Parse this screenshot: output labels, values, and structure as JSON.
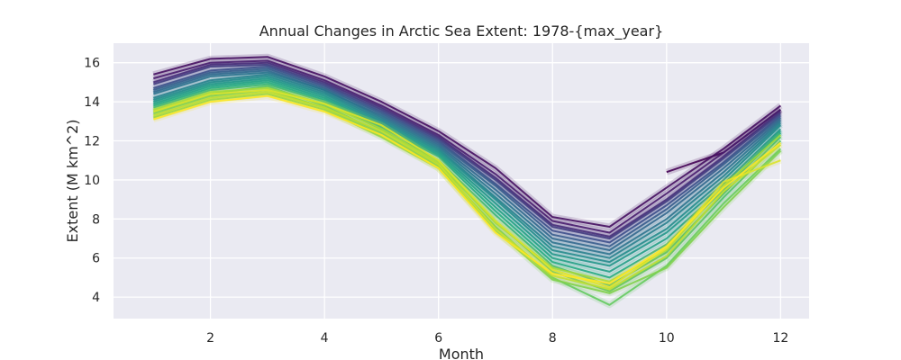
{
  "chart_data": {
    "type": "line",
    "title": "Annual Changes in Arctic Sea Extent: 1978-{max_year}",
    "xlabel": "Month",
    "ylabel": "Extent (M km^2)",
    "xlim": [
      0.3,
      12.5
    ],
    "ylim": [
      2.9,
      17.0
    ],
    "xticks": [
      2,
      4,
      6,
      8,
      10,
      12
    ],
    "yticks": [
      4,
      6,
      8,
      10,
      12,
      14,
      16
    ],
    "grid": true,
    "background": "#eaeaf2",
    "colormap": "viridis",
    "series": [
      {
        "x": [
          10,
          11,
          12
        ],
        "values": [
          10.4,
          11.4,
          13.6
        ]
      },
      {
        "x": [
          1,
          2,
          3,
          4,
          5,
          6,
          7,
          8,
          9,
          10,
          11,
          12
        ],
        "values": [
          15.4,
          16.2,
          16.3,
          15.3,
          14.0,
          12.5,
          10.6,
          8.1,
          7.6,
          9.6,
          11.6,
          13.8
        ]
      },
      {
        "x": [
          1,
          2,
          3,
          4,
          5,
          6,
          7,
          8,
          9,
          10,
          11,
          12
        ],
        "values": [
          15.2,
          16.0,
          16.1,
          15.1,
          13.8,
          12.3,
          10.3,
          7.9,
          7.3,
          9.3,
          11.4,
          13.6
        ]
      },
      {
        "x": [
          1,
          2,
          3,
          4,
          5,
          6,
          7,
          8,
          9,
          10,
          11,
          12
        ],
        "values": [
          15.0,
          15.9,
          16.0,
          15.0,
          13.7,
          12.2,
          10.1,
          7.7,
          7.1,
          9.0,
          11.2,
          13.5
        ]
      },
      {
        "x": [
          1,
          2,
          3,
          4,
          5,
          6,
          7,
          8,
          9,
          10,
          11,
          12
        ],
        "values": [
          14.9,
          15.8,
          15.9,
          14.9,
          13.6,
          12.1,
          10.0,
          7.6,
          7.0,
          8.9,
          11.1,
          13.4
        ]
      },
      {
        "x": [
          1,
          2,
          3,
          4,
          5,
          6,
          7,
          8,
          9,
          10,
          11,
          12
        ],
        "values": [
          14.7,
          15.6,
          15.8,
          14.8,
          13.5,
          12.0,
          9.8,
          7.4,
          6.8,
          8.7,
          10.9,
          13.3
        ]
      },
      {
        "x": [
          1,
          2,
          3,
          4,
          5,
          6,
          7,
          8,
          9,
          10,
          11,
          12
        ],
        "values": [
          14.6,
          15.5,
          15.7,
          14.7,
          13.4,
          11.9,
          9.7,
          7.2,
          6.6,
          8.5,
          10.8,
          13.2
        ]
      },
      {
        "x": [
          1,
          2,
          3,
          4,
          5,
          6,
          7,
          8,
          9,
          10,
          11,
          12
        ],
        "values": [
          14.5,
          15.4,
          15.6,
          14.6,
          13.3,
          11.8,
          9.5,
          7.0,
          6.4,
          8.3,
          10.6,
          13.1
        ]
      },
      {
        "x": [
          1,
          2,
          3,
          4,
          5,
          6,
          7,
          8,
          9,
          10,
          11,
          12
        ],
        "values": [
          14.4,
          15.3,
          15.5,
          14.6,
          13.2,
          11.7,
          9.3,
          6.8,
          6.2,
          8.0,
          10.4,
          13.0
        ]
      },
      {
        "x": [
          1,
          2,
          3,
          4,
          5,
          6,
          7,
          8,
          9,
          10,
          11,
          12
        ],
        "values": [
          14.2,
          15.1,
          15.4,
          14.5,
          13.1,
          11.6,
          9.1,
          6.6,
          6.0,
          7.8,
          10.2,
          12.9
        ]
      },
      {
        "x": [
          1,
          2,
          3,
          4,
          5,
          6,
          7,
          8,
          9,
          10,
          11,
          12
        ],
        "values": [
          14.1,
          15.0,
          15.3,
          14.4,
          13.0,
          11.5,
          9.0,
          6.4,
          5.8,
          7.5,
          10.0,
          12.8
        ]
      },
      {
        "x": [
          1,
          2,
          3,
          4,
          5,
          6,
          7,
          8,
          9,
          10,
          11,
          12
        ],
        "values": [
          14.0,
          14.9,
          15.2,
          14.3,
          12.9,
          11.4,
          8.8,
          6.2,
          5.6,
          7.3,
          9.8,
          12.6
        ]
      },
      {
        "x": [
          1,
          2,
          3,
          4,
          5,
          6,
          7,
          8,
          9,
          10,
          11,
          12
        ],
        "values": [
          13.9,
          14.8,
          15.1,
          14.2,
          12.8,
          11.3,
          8.6,
          6.0,
          5.3,
          7.0,
          9.6,
          12.5
        ]
      },
      {
        "x": [
          1,
          2,
          3,
          4,
          5,
          6,
          7,
          8,
          9,
          10,
          11,
          12
        ],
        "values": [
          13.8,
          14.7,
          15.0,
          14.1,
          12.7,
          11.2,
          8.4,
          5.8,
          5.0,
          6.7,
          9.5,
          12.4
        ]
      },
      {
        "x": [
          1,
          2,
          3,
          4,
          5,
          6,
          7,
          8,
          9,
          10,
          11,
          12
        ],
        "values": [
          13.7,
          14.6,
          14.9,
          14.0,
          12.6,
          11.0,
          8.2,
          5.6,
          4.6,
          6.3,
          9.3,
          12.2
        ]
      },
      {
        "x": [
          1,
          2,
          3,
          4,
          5,
          6,
          7,
          8,
          9,
          10,
          11,
          12
        ],
        "values": [
          13.5,
          14.4,
          14.8,
          13.8,
          12.4,
          10.8,
          7.9,
          5.3,
          4.3,
          6.0,
          9.1,
          12.0
        ]
      },
      {
        "x": [
          1,
          2,
          3,
          4,
          5,
          6,
          7,
          8,
          9,
          10,
          11,
          12
        ],
        "values": [
          13.4,
          14.3,
          14.6,
          13.7,
          12.3,
          10.7,
          7.6,
          5.0,
          3.6,
          5.6,
          8.8,
          11.6
        ]
      },
      {
        "x": [
          1,
          2,
          3,
          4,
          5,
          6,
          7,
          8,
          9,
          10,
          11,
          12
        ],
        "values": [
          13.2,
          14.1,
          14.4,
          13.6,
          12.2,
          10.6,
          7.4,
          4.9,
          4.2,
          5.5,
          8.6,
          11.5
        ]
      },
      {
        "x": [
          1,
          2,
          3,
          4,
          5,
          6,
          7,
          8,
          9,
          10,
          11,
          12
        ],
        "values": [
          13.6,
          14.5,
          14.7,
          13.9,
          12.6,
          10.9,
          7.8,
          5.5,
          4.8,
          6.4,
          9.7,
          12.3
        ]
      },
      {
        "x": [
          1,
          2,
          3,
          4,
          5,
          6,
          7,
          8,
          9,
          10,
          11,
          12
        ],
        "values": [
          13.3,
          14.2,
          14.5,
          13.7,
          12.5,
          10.8,
          7.5,
          5.1,
          4.4,
          6.1,
          9.4,
          11.8
        ]
      },
      {
        "x": [
          1,
          2,
          3,
          4,
          5,
          6,
          7,
          8,
          9,
          10,
          11,
          12
        ],
        "values": [
          13.5,
          14.4,
          14.6,
          13.9,
          12.8,
          11.0,
          7.9,
          5.4,
          4.5,
          6.5,
          9.9,
          11.0
        ]
      },
      {
        "x": [
          1,
          2,
          3,
          4,
          5,
          6,
          7,
          8,
          9,
          10,
          11,
          12
        ],
        "values": [
          13.1,
          14.0,
          14.3,
          13.5,
          12.3,
          10.6,
          7.3,
          5.2,
          4.7,
          6.6,
          9.6,
          11.9
        ]
      }
    ]
  }
}
